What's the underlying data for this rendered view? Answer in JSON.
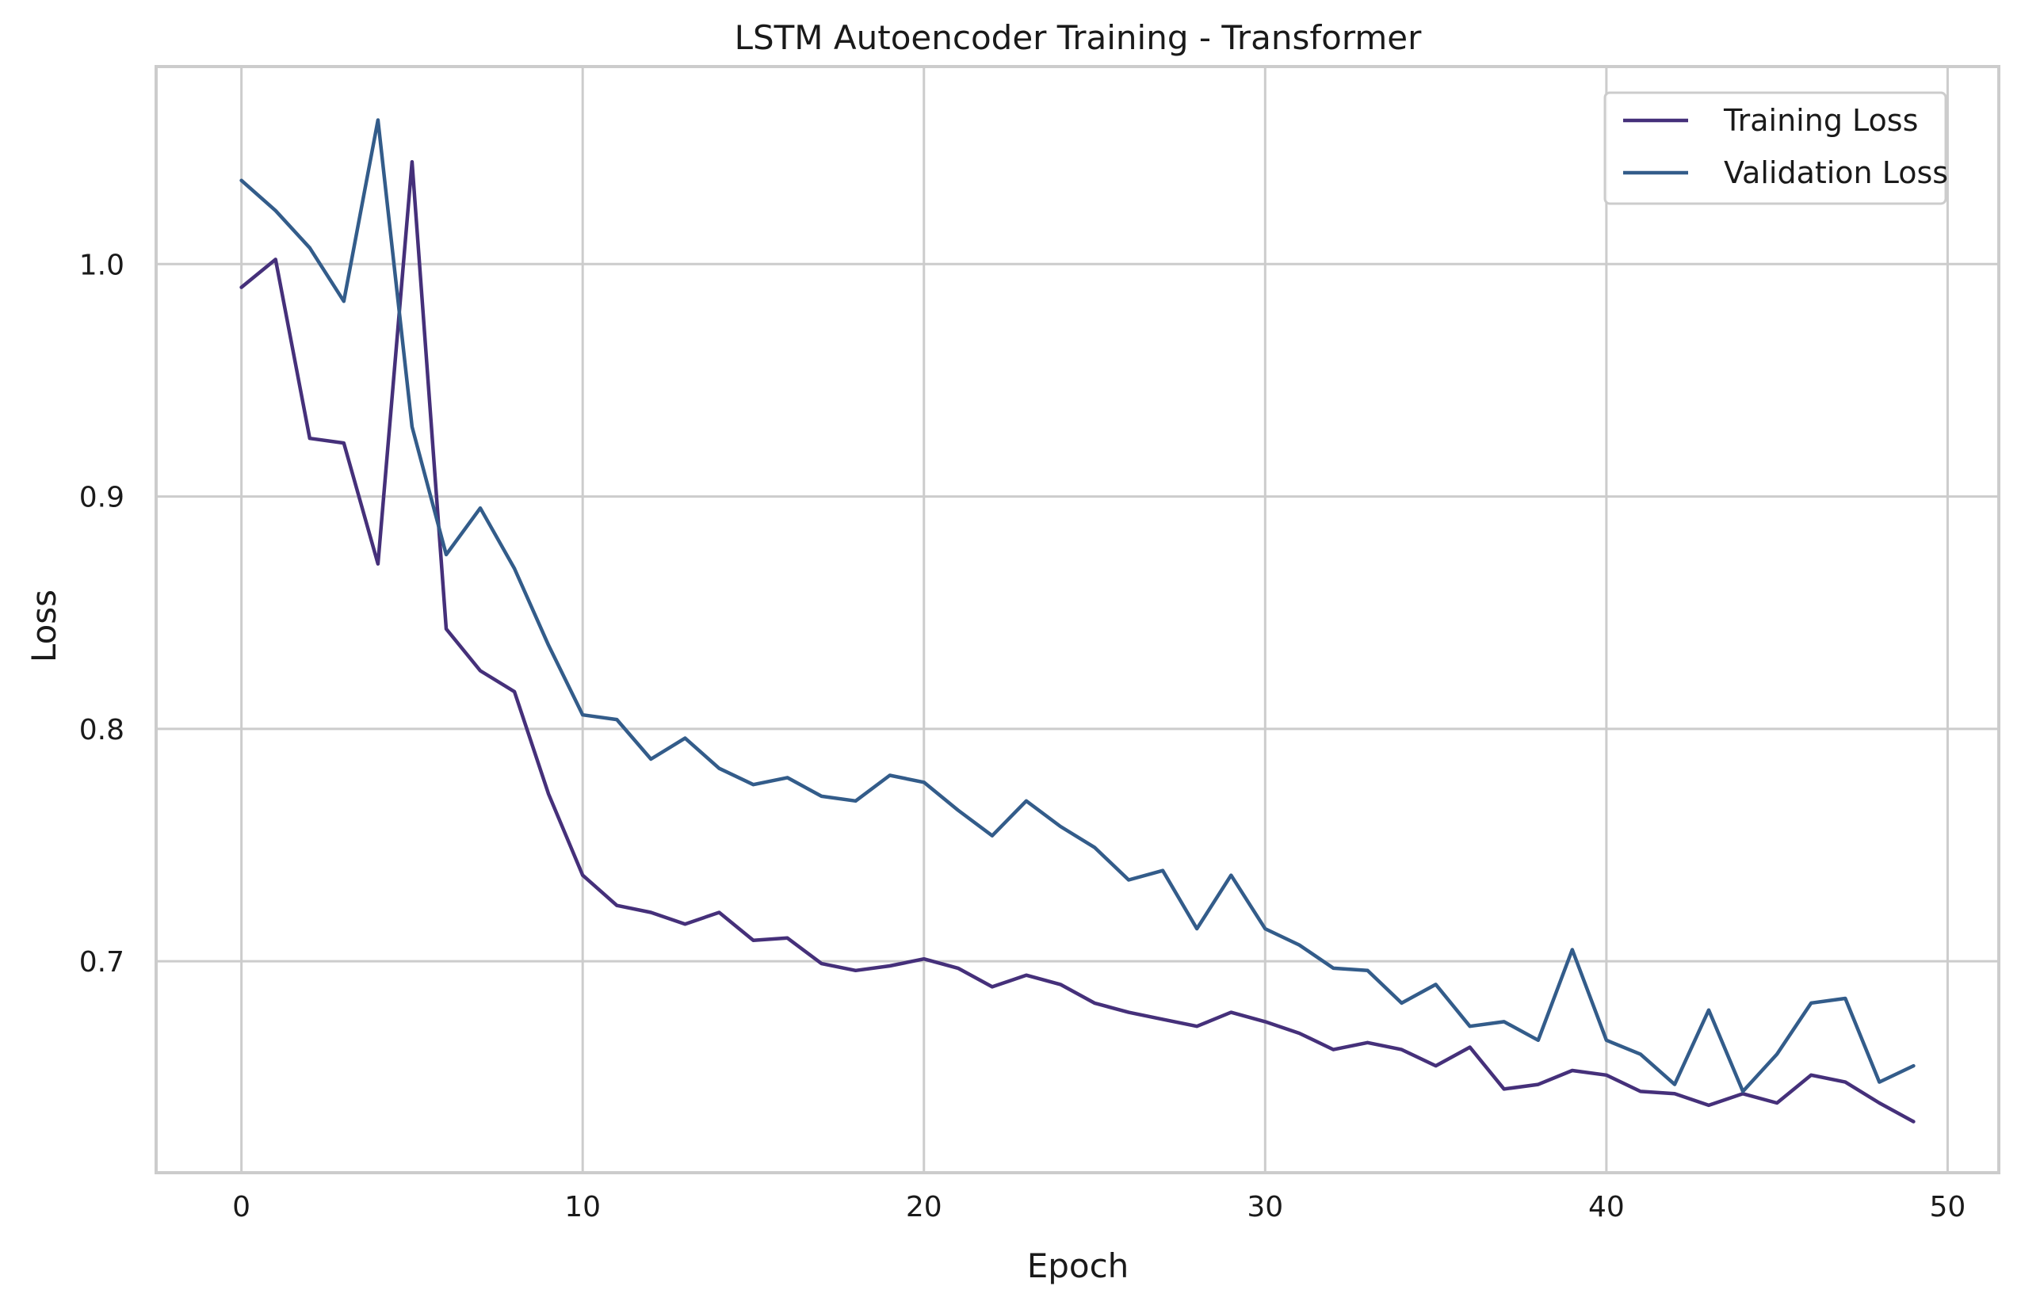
{
  "chart_data": {
    "type": "line",
    "title": "LSTM Autoencoder Training - Transformer",
    "xlabel": "Epoch",
    "ylabel": "Loss",
    "xlim": [
      -2.5,
      51.5
    ],
    "ylim": [
      0.609,
      1.085
    ],
    "xticks": [
      0,
      10,
      20,
      30,
      40,
      50
    ],
    "yticks": [
      0.7,
      0.8,
      0.9,
      1.0
    ],
    "xtick_labels": [
      "0",
      "10",
      "20",
      "30",
      "40",
      "50"
    ],
    "ytick_labels": [
      "0.7",
      "0.8",
      "0.9",
      "1.0"
    ],
    "grid": true,
    "legend_position": "top-right",
    "x": [
      0,
      1,
      2,
      3,
      4,
      5,
      6,
      7,
      8,
      9,
      10,
      11,
      12,
      13,
      14,
      15,
      16,
      17,
      18,
      19,
      20,
      21,
      22,
      23,
      24,
      25,
      26,
      27,
      28,
      29,
      30,
      31,
      32,
      33,
      34,
      35,
      36,
      37,
      38,
      39,
      40,
      41,
      42,
      43,
      44,
      45,
      46,
      47,
      48,
      49
    ],
    "series": [
      {
        "name": "Training Loss",
        "color": "#45307a",
        "values": [
          0.99,
          1.002,
          0.925,
          0.923,
          0.871,
          1.044,
          0.843,
          0.825,
          0.816,
          0.772,
          0.737,
          0.724,
          0.721,
          0.716,
          0.721,
          0.709,
          0.71,
          0.699,
          0.696,
          0.698,
          0.701,
          0.697,
          0.689,
          0.694,
          0.69,
          0.682,
          0.678,
          0.675,
          0.672,
          0.678,
          0.674,
          0.669,
          0.662,
          0.665,
          0.662,
          0.655,
          0.663,
          0.645,
          0.647,
          0.653,
          0.651,
          0.644,
          0.643,
          0.638,
          0.643,
          0.639,
          0.651,
          0.648,
          0.639,
          0.631
        ]
      },
      {
        "name": "Validation Loss",
        "color": "#335c8a",
        "values": [
          1.036,
          1.023,
          1.007,
          0.984,
          1.062,
          0.93,
          0.875,
          0.895,
          0.869,
          0.836,
          0.806,
          0.804,
          0.787,
          0.796,
          0.783,
          0.776,
          0.779,
          0.771,
          0.769,
          0.78,
          0.777,
          0.765,
          0.754,
          0.769,
          0.758,
          0.749,
          0.735,
          0.739,
          0.714,
          0.737,
          0.714,
          0.707,
          0.697,
          0.696,
          0.682,
          0.69,
          0.672,
          0.674,
          0.666,
          0.705,
          0.666,
          0.66,
          0.647,
          0.679,
          0.644,
          0.66,
          0.682,
          0.684,
          0.648,
          0.655
        ]
      }
    ]
  }
}
